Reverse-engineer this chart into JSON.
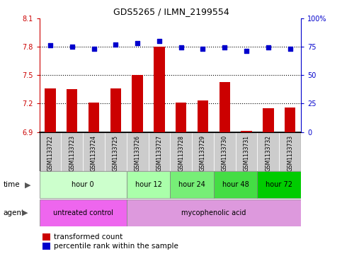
{
  "title": "GDS5265 / ILMN_2199554",
  "samples": [
    "GSM1133722",
    "GSM1133723",
    "GSM1133724",
    "GSM1133725",
    "GSM1133726",
    "GSM1133727",
    "GSM1133728",
    "GSM1133729",
    "GSM1133730",
    "GSM1133731",
    "GSM1133732",
    "GSM1133733"
  ],
  "bar_values": [
    7.36,
    7.35,
    7.21,
    7.36,
    7.5,
    7.8,
    7.21,
    7.23,
    7.43,
    6.91,
    7.15,
    7.16
  ],
  "dot_values": [
    76,
    75,
    73,
    77,
    78,
    80,
    74,
    73,
    74,
    71,
    74,
    73
  ],
  "bar_bottom": 6.9,
  "ylim_left": [
    6.9,
    8.1
  ],
  "ylim_right": [
    0,
    100
  ],
  "yticks_left": [
    6.9,
    7.2,
    7.5,
    7.8,
    8.1
  ],
  "yticks_right": [
    0,
    25,
    50,
    75,
    100
  ],
  "hlines": [
    7.2,
    7.5,
    7.8
  ],
  "bar_color": "#cc0000",
  "dot_color": "#0000cc",
  "left_tick_color": "#cc0000",
  "right_tick_color": "#0000cc",
  "time_groups": [
    {
      "label": "hour 0",
      "start": 0,
      "end": 4,
      "color": "#ccffcc"
    },
    {
      "label": "hour 12",
      "start": 4,
      "end": 6,
      "color": "#aaffaa"
    },
    {
      "label": "hour 24",
      "start": 6,
      "end": 8,
      "color": "#77ee77"
    },
    {
      "label": "hour 48",
      "start": 8,
      "end": 10,
      "color": "#44dd44"
    },
    {
      "label": "hour 72",
      "start": 10,
      "end": 12,
      "color": "#00cc00"
    }
  ],
  "agent_groups": [
    {
      "label": "untreated control",
      "start": 0,
      "end": 4,
      "color": "#ee66ee"
    },
    {
      "label": "mycophenolic acid",
      "start": 4,
      "end": 12,
      "color": "#dd99dd"
    }
  ],
  "legend_bar_label": "transformed count",
  "legend_dot_label": "percentile rank within the sample",
  "bar_width": 0.5,
  "sample_box_color": "#cccccc",
  "border_color": "#000000"
}
